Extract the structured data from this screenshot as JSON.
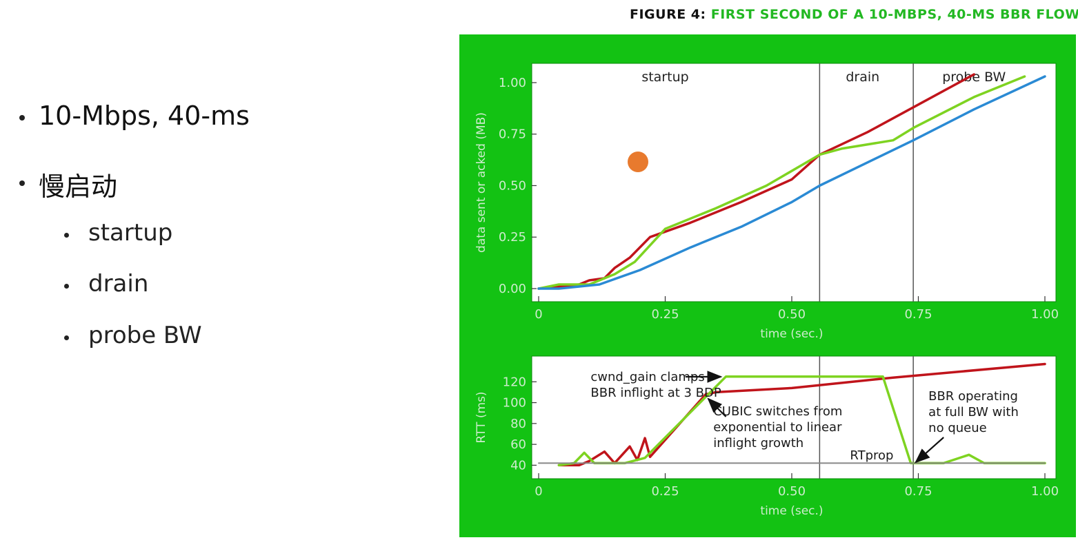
{
  "slide": {
    "bullets": [
      {
        "text": "10-Mbps, 40-ms",
        "level": 1
      },
      {
        "text": "慢启动",
        "level": 1
      },
      {
        "text": "startup",
        "level": 2
      },
      {
        "text": "drain",
        "level": 2
      },
      {
        "text": "probe BW",
        "level": 2
      }
    ],
    "figure_title_lead": "FIGURE 4:",
    "figure_title_rest": "FIRST SECOND OF A 10-MBPS, 40-MS BBR FLOW"
  },
  "colors": {
    "panel": "#13c213",
    "red_series": "#c0141b",
    "green_series": "#7ed321",
    "blue_series": "#2a8ad4",
    "axis_text": "#cdeccd",
    "phase_line": "#555555"
  },
  "chart_data": [
    {
      "type": "line",
      "title": "",
      "xlabel": "time (sec.)",
      "ylabel": "data sent or acked (MB)",
      "xlim": [
        0,
        1.0
      ],
      "ylim": [
        0,
        1.05
      ],
      "xticks": [
        "0",
        "0.25",
        "0.50",
        "0.75",
        "1.00"
      ],
      "yticks": [
        "0.00",
        "0.25",
        "0.50",
        "0.75",
        "1.00"
      ],
      "phases": [
        {
          "label": "startup",
          "x_label": 0.25
        },
        {
          "label": "drain",
          "x_label": 0.64,
          "x_start": 0.555
        },
        {
          "label": "probe BW",
          "x_label": 0.86,
          "x_start": 0.74
        }
      ],
      "series": [
        {
          "color": "red",
          "points": [
            [
              0,
              0
            ],
            [
              0.08,
              0.02
            ],
            [
              0.1,
              0.04
            ],
            [
              0.13,
              0.05
            ],
            [
              0.15,
              0.1
            ],
            [
              0.18,
              0.15
            ],
            [
              0.22,
              0.25
            ],
            [
              0.3,
              0.32
            ],
            [
              0.4,
              0.42
            ],
            [
              0.5,
              0.53
            ],
            [
              0.555,
              0.65
            ],
            [
              0.65,
              0.76
            ],
            [
              0.74,
              0.88
            ],
            [
              0.86,
              1.04
            ]
          ]
        },
        {
          "color": "green",
          "points": [
            [
              0,
              0
            ],
            [
              0.04,
              0.02
            ],
            [
              0.1,
              0.02
            ],
            [
              0.15,
              0.07
            ],
            [
              0.19,
              0.13
            ],
            [
              0.25,
              0.29
            ],
            [
              0.35,
              0.39
            ],
            [
              0.45,
              0.5
            ],
            [
              0.555,
              0.65
            ],
            [
              0.6,
              0.68
            ],
            [
              0.7,
              0.72
            ],
            [
              0.74,
              0.78
            ],
            [
              0.86,
              0.93
            ],
            [
              0.96,
              1.03
            ]
          ]
        },
        {
          "color": "blue",
          "points": [
            [
              0,
              0
            ],
            [
              0.04,
              0
            ],
            [
              0.12,
              0.02
            ],
            [
              0.2,
              0.09
            ],
            [
              0.3,
              0.2
            ],
            [
              0.4,
              0.3
            ],
            [
              0.5,
              0.42
            ],
            [
              0.555,
              0.5
            ],
            [
              0.74,
              0.72
            ],
            [
              0.86,
              0.87
            ],
            [
              1.0,
              1.03
            ]
          ]
        }
      ]
    },
    {
      "type": "line",
      "title": "",
      "xlabel": "time (sec.)",
      "ylabel": "RTT (ms)",
      "xlim": [
        0,
        1.0
      ],
      "ylim": [
        35,
        140
      ],
      "xticks": [
        "0",
        "0.25",
        "0.50",
        "0.75",
        "1.00"
      ],
      "yticks": [
        "40",
        "60",
        "80",
        "100",
        "120"
      ],
      "annotations": [
        {
          "text": [
            "cwnd_gain clamps",
            "BBR inflight at 3 BDP"
          ],
          "x": 0.13
        },
        {
          "text": [
            "CUBIC switches from",
            "exponential to linear",
            "inflight growth"
          ],
          "x": 0.34
        },
        {
          "text": [
            "RTprop"
          ],
          "x": 0.62
        },
        {
          "text": [
            "BBR operating",
            "at full BW with",
            "no queue"
          ],
          "x": 0.77
        }
      ],
      "series": [
        {
          "color": "red",
          "points": [
            [
              0.04,
              40
            ],
            [
              0.08,
              40
            ],
            [
              0.1,
              44
            ],
            [
              0.13,
              53
            ],
            [
              0.15,
              42
            ],
            [
              0.18,
              58
            ],
            [
              0.195,
              45
            ],
            [
              0.21,
              66
            ],
            [
              0.22,
              48
            ],
            [
              0.33,
              108
            ],
            [
              0.35,
              110
            ],
            [
              0.5,
              114
            ],
            [
              0.7,
              124
            ],
            [
              1.0,
              137
            ]
          ]
        },
        {
          "color": "green",
          "points": [
            [
              0.04,
              40
            ],
            [
              0.07,
              42
            ],
            [
              0.09,
              52
            ],
            [
              0.11,
              42
            ],
            [
              0.17,
              42
            ],
            [
              0.21,
              47
            ],
            [
              0.37,
              125
            ],
            [
              0.68,
              125
            ],
            [
              0.735,
              42
            ],
            [
              0.8,
              42
            ],
            [
              0.85,
              50
            ],
            [
              0.88,
              42
            ],
            [
              1.0,
              42
            ]
          ]
        },
        {
          "color": "gray",
          "points": [
            [
              0,
              42
            ],
            [
              1.0,
              42
            ]
          ]
        }
      ]
    }
  ]
}
